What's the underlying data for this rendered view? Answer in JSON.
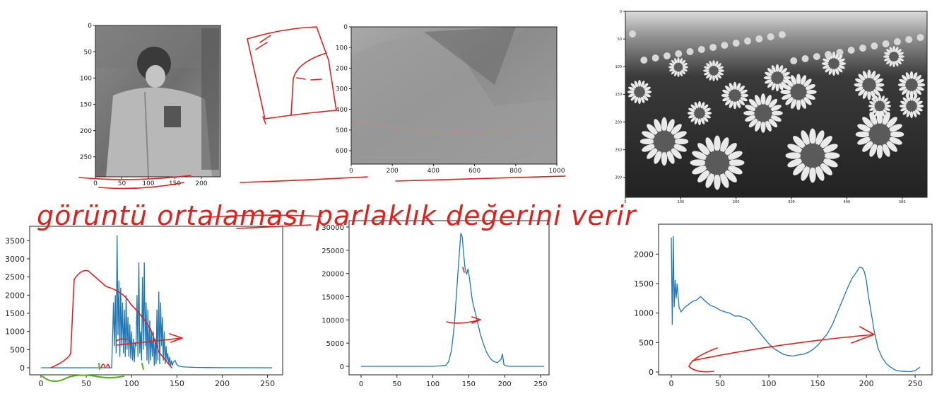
{
  "handwriting": {
    "note": "görüntü ortalaması parlaklık değerini verir"
  },
  "images": [
    {
      "name": "child-photo",
      "xticks": [
        "0",
        "50",
        "100",
        "150",
        "200"
      ],
      "yticks": [
        "0",
        "50",
        "100",
        "150",
        "200",
        "250"
      ]
    },
    {
      "name": "landscape-photo",
      "xticks": [
        "0",
        "200",
        "400",
        "600",
        "800",
        "1000"
      ],
      "yticks": [
        "0",
        "100",
        "200",
        "300",
        "400",
        "500",
        "600"
      ]
    },
    {
      "name": "sunflower-photo",
      "xticks": [
        "0",
        "100",
        "200",
        "300",
        "400",
        "500"
      ],
      "yticks": [
        "0",
        "50",
        "100",
        "150",
        "200",
        "250",
        "300"
      ]
    }
  ],
  "chart_data": [
    {
      "type": "line",
      "title": "",
      "xlabel": "",
      "ylabel": "",
      "xlim": [
        0,
        255
      ],
      "ylim": [
        0,
        3700
      ],
      "xticks": [
        0,
        50,
        100,
        150,
        200,
        250
      ],
      "yticks": [
        0,
        500,
        1000,
        1500,
        2000,
        2500,
        3000,
        3500
      ],
      "series": [
        {
          "name": "",
          "color": "#1f77b4",
          "x": [
            0,
            78,
            79,
            80,
            81,
            82,
            83,
            84,
            85,
            86,
            87,
            88,
            89,
            90,
            91,
            92,
            93,
            94,
            95,
            96,
            97,
            98,
            99,
            100,
            101,
            102,
            103,
            104,
            105,
            106,
            107,
            108,
            109,
            110,
            111,
            112,
            113,
            114,
            115,
            116,
            117,
            118,
            119,
            120,
            121,
            122,
            123,
            124,
            125,
            126,
            127,
            128,
            129,
            130,
            131,
            132,
            133,
            134,
            135,
            136,
            137,
            138,
            139,
            140,
            141,
            142,
            143,
            144,
            145,
            146,
            148,
            150,
            152,
            155,
            160,
            170,
            180,
            200,
            255
          ],
          "y": [
            0,
            0,
            800,
            1800,
            600,
            2000,
            400,
            3650,
            900,
            2400,
            300,
            2200,
            600,
            1800,
            400,
            1600,
            300,
            2000,
            500,
            1400,
            300,
            1200,
            250,
            1000,
            200,
            800,
            150,
            700,
            600,
            2000,
            300,
            2900,
            400,
            1000,
            200,
            2500,
            500,
            2900,
            600,
            1800,
            200,
            1600,
            100,
            1300,
            200,
            1000,
            300,
            1000,
            50,
            800,
            100,
            1600,
            200,
            2100,
            100,
            1800,
            600,
            1400,
            200,
            1000,
            100,
            600,
            200,
            400,
            100,
            300,
            50,
            200,
            60,
            150,
            200,
            80,
            50,
            30,
            20,
            10,
            5,
            2,
            0
          ]
        }
      ]
    },
    {
      "type": "line",
      "title": "",
      "xlabel": "",
      "ylabel": "",
      "xlim": [
        0,
        255
      ],
      "ylim": [
        0,
        30000
      ],
      "xticks": [
        0,
        50,
        100,
        150,
        200,
        250
      ],
      "yticks": [
        0,
        5000,
        10000,
        15000,
        20000,
        25000,
        30000
      ],
      "series": [
        {
          "name": "",
          "color": "#1f77b4",
          "x": [
            0,
            100,
            118,
            122,
            126,
            130,
            134,
            137,
            139,
            141,
            143,
            145,
            147,
            149,
            151,
            153,
            155,
            157,
            160,
            163,
            166,
            170,
            175,
            180,
            185,
            190,
            195,
            197,
            199,
            201,
            205,
            210,
            255
          ],
          "y": [
            0,
            0,
            200,
            1000,
            3500,
            9000,
            18000,
            24500,
            28700,
            27800,
            24000,
            21000,
            19800,
            21000,
            19000,
            16500,
            14200,
            12800,
            11000,
            9000,
            7000,
            5000,
            3000,
            1700,
            1000,
            800,
            1500,
            2700,
            400,
            150,
            50,
            0,
            0
          ]
        }
      ]
    },
    {
      "type": "line",
      "title": "",
      "xlabel": "",
      "ylabel": "",
      "xlim": [
        0,
        255
      ],
      "ylim": [
        0,
        2400
      ],
      "xticks": [
        0,
        50,
        100,
        150,
        200,
        250
      ],
      "yticks": [
        0,
        500,
        1000,
        1500,
        2000
      ],
      "series": [
        {
          "name": "",
          "color": "#1f77b4",
          "x": [
            0,
            1,
            2,
            3,
            4,
            5,
            6,
            8,
            10,
            14,
            18,
            22,
            26,
            30,
            35,
            40,
            45,
            50,
            55,
            60,
            65,
            70,
            75,
            80,
            85,
            90,
            95,
            100,
            105,
            110,
            115,
            120,
            125,
            130,
            135,
            140,
            145,
            150,
            155,
            160,
            165,
            170,
            175,
            180,
            185,
            190,
            193,
            196,
            198,
            200,
            202,
            205,
            208,
            212,
            216,
            220,
            225,
            230,
            235,
            240,
            245,
            250,
            253,
            255
          ],
          "y": [
            2280,
            800,
            2310,
            1100,
            1560,
            1250,
            1500,
            1100,
            1020,
            1100,
            1150,
            1200,
            1220,
            1280,
            1200,
            1130,
            1100,
            1050,
            1020,
            1000,
            950,
            950,
            920,
            880,
            780,
            680,
            580,
            480,
            400,
            350,
            300,
            280,
            270,
            290,
            300,
            330,
            380,
            450,
            550,
            650,
            800,
            1000,
            1200,
            1400,
            1580,
            1700,
            1780,
            1760,
            1700,
            1550,
            1300,
            1000,
            700,
            400,
            250,
            150,
            80,
            30,
            15,
            10,
            5,
            20,
            60,
            80
          ]
        }
      ]
    }
  ]
}
